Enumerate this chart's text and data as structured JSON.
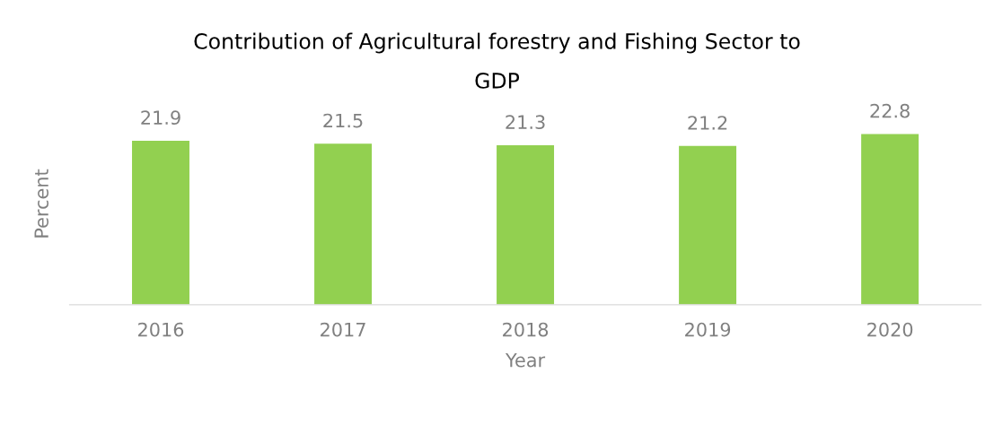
{
  "chart_data": {
    "type": "bar",
    "title": "Contribution of Agricultural forestry and Fishing Sector to GDP",
    "xlabel": "Year",
    "ylabel": "Percent",
    "categories": [
      "2016",
      "2017",
      "2018",
      "2019",
      "2020"
    ],
    "values": [
      21.9,
      21.5,
      21.3,
      21.2,
      22.8
    ],
    "color": "#92d050",
    "data_labels": true,
    "tick_labels": "x",
    "legend": false
  }
}
